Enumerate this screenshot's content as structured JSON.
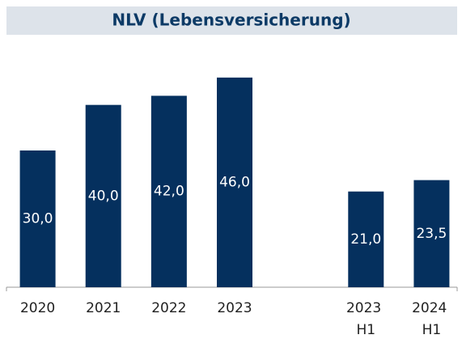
{
  "chart_data": {
    "type": "bar",
    "title": "NLV (Lebensversicherung)",
    "categories": [
      "2020",
      "2021",
      "2022",
      "2023",
      null,
      "2023 H1",
      "2024 H1"
    ],
    "values": [
      30,
      40,
      42,
      46,
      null,
      21,
      23.5
    ],
    "value_labels": [
      "30,0",
      "40,0",
      "42,0",
      "46,0",
      null,
      "21,0",
      "23,5"
    ],
    "color": "#05305e",
    "ylim": [
      0,
      60
    ]
  }
}
